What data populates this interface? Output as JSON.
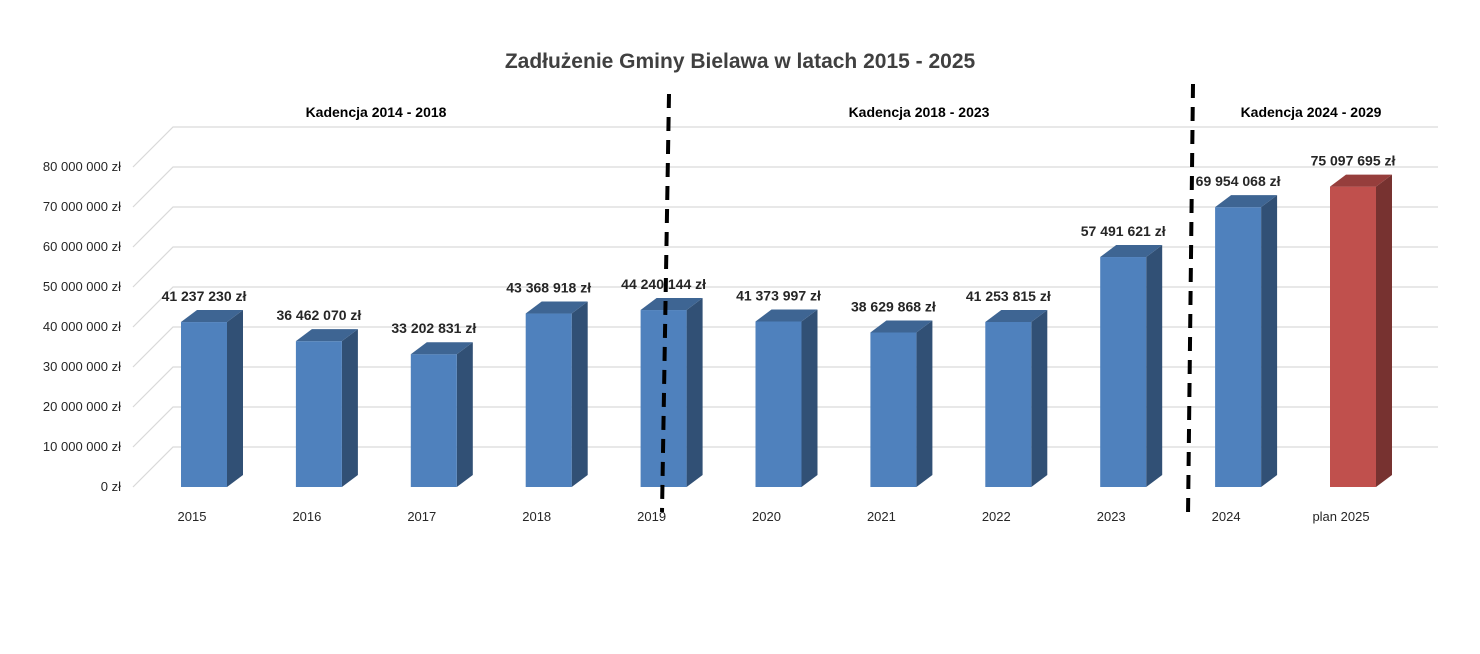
{
  "chart_data": {
    "type": "bar",
    "title": "Zadłużenie Gminy Bielawa w latach 2015 - 2025",
    "categories": [
      "2015",
      "2016",
      "2017",
      "2018",
      "2019",
      "2020",
      "2021",
      "2022",
      "2023",
      "2024",
      "plan 2025"
    ],
    "values": [
      41237230,
      36462070,
      33202831,
      43368918,
      44240144,
      41373997,
      38629868,
      41253815,
      57491621,
      69954068,
      75097695
    ],
    "value_labels": [
      "41 237 230 zł",
      "36 462 070 zł",
      "33 202 831 zł",
      "43 368 918 zł",
      "44 240 144 zł",
      "41 373 997 zł",
      "38 629 868 zł",
      "41 253 815 zł",
      "57 491 621 zł",
      "69 954 068 zł",
      "75 097 695 zł"
    ],
    "ylim": [
      0,
      85000000
    ],
    "yticks": [
      0,
      10000000,
      20000000,
      30000000,
      40000000,
      50000000,
      60000000,
      70000000,
      80000000
    ],
    "ytick_labels": [
      "0 zł",
      "10 000 000 zł",
      "20 000 000 zł",
      "30 000 000 zł",
      "40 000 000 zł",
      "50 000 000 zł",
      "60 000 000 zł",
      "70 000 000 zł",
      "80 000 000 zł"
    ],
    "grid": true,
    "legend": "none",
    "style": "3d-column",
    "colors": {
      "default_bar": "#4F81BD",
      "highlight_bar": "#C0504D",
      "gridline": "#D9D9D9",
      "divider": "#000000"
    },
    "highlight_categories": [
      "plan 2025"
    ],
    "periods": [
      {
        "label": "Kadencja 2014 - 2018"
      },
      {
        "label": "Kadencja 2018 - 2023"
      },
      {
        "label": "Kadencja 2024 - 2029"
      }
    ]
  }
}
